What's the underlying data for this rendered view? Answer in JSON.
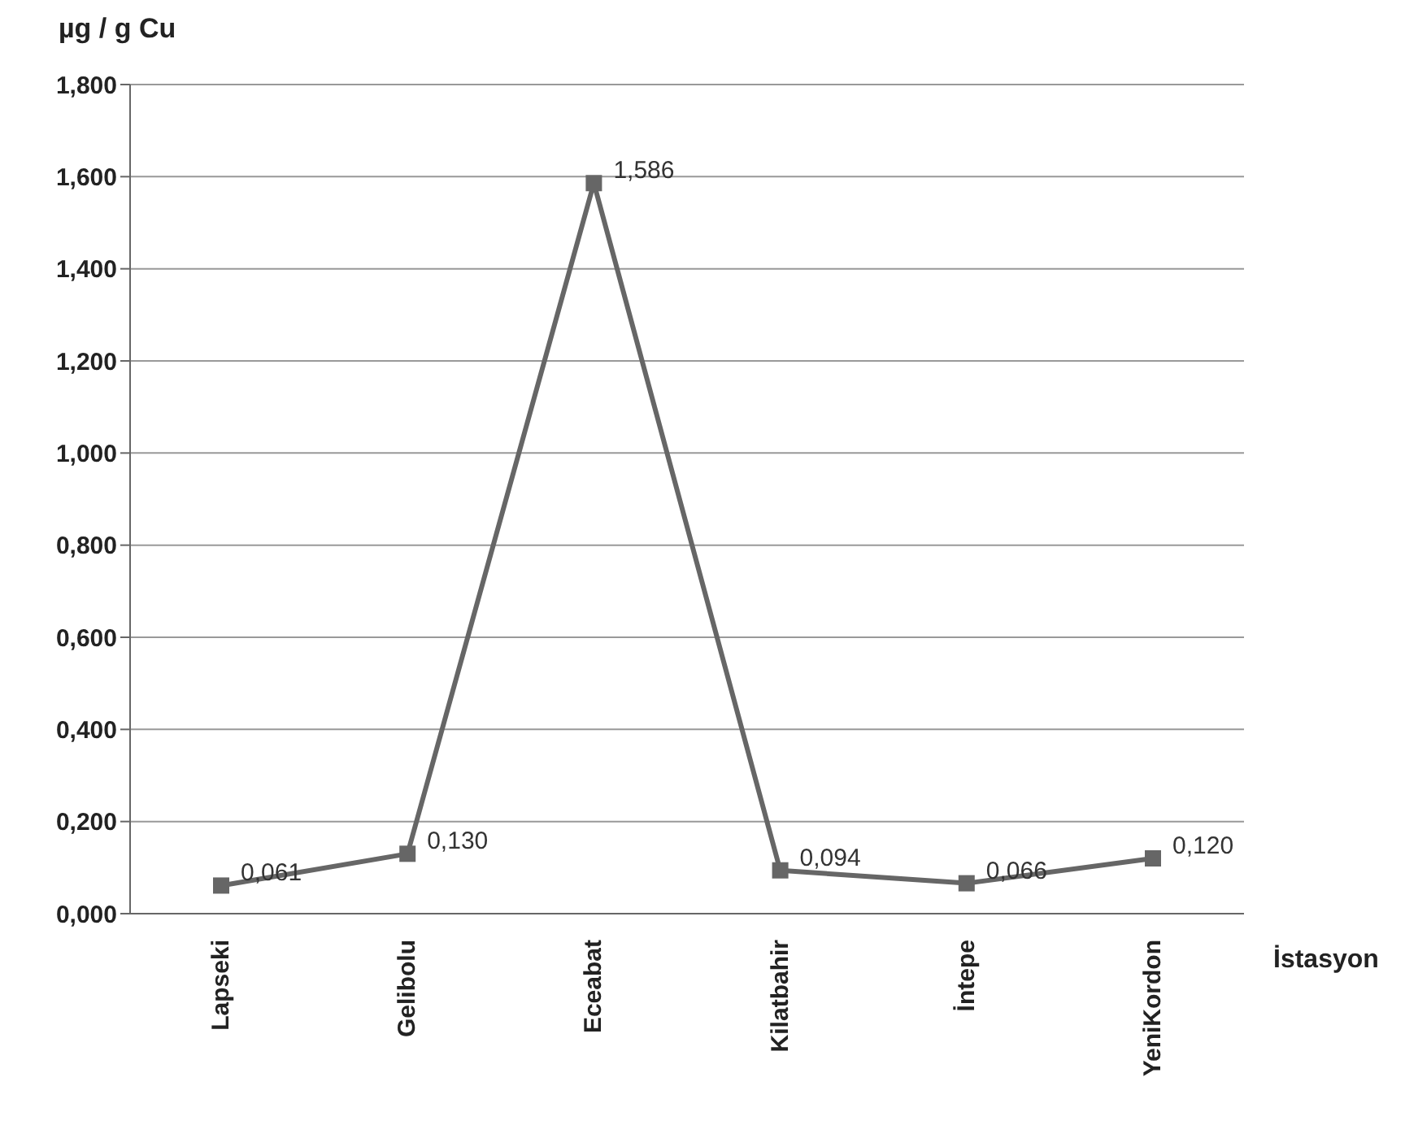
{
  "chart_data": {
    "type": "line",
    "ylabel": "µg / g Cu",
    "xlabel": "İstasyon",
    "categories": [
      "Lapseki",
      "Gelibolu",
      "Eceabat",
      "Kilatbahir",
      "İntepe",
      "YeniKordon"
    ],
    "series": [
      {
        "color": "#666666",
        "values": [
          0.061,
          0.13,
          1.586,
          0.094,
          0.066,
          0.12
        ],
        "value_labels": [
          "0,061",
          "0,130",
          "1,586",
          "0,094",
          "0,066",
          "0,120"
        ]
      }
    ],
    "ylim": [
      0,
      1.8
    ],
    "yticks": [
      {
        "value": 0,
        "label": "0,000"
      },
      {
        "value": 0.2,
        "label": "0,200"
      },
      {
        "value": 0.4,
        "label": "0,400"
      },
      {
        "value": 0.6,
        "label": "0,600"
      },
      {
        "value": 0.8,
        "label": "0,800"
      },
      {
        "value": 1,
        "label": "1,000"
      },
      {
        "value": 1.2,
        "label": "1,200"
      },
      {
        "value": 1.4,
        "label": "1,400"
      },
      {
        "value": 1.6,
        "label": "1,600"
      },
      {
        "value": 1.8,
        "label": "1,800"
      }
    ],
    "grid": "y",
    "marker": "square",
    "line_style": "solid"
  }
}
